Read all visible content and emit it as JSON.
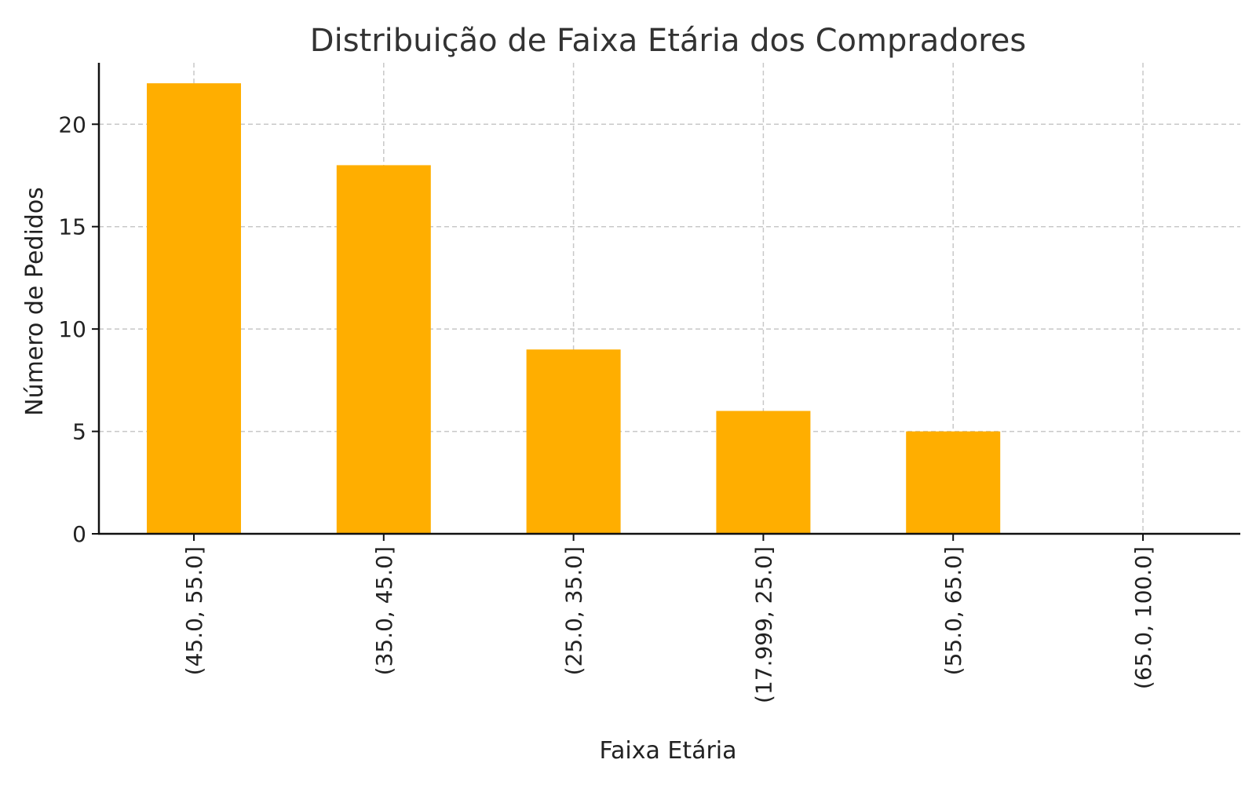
{
  "chart_data": {
    "type": "bar",
    "title": "Distribuição de Faixa Etária dos Compradores",
    "xlabel": "Faixa Etária",
    "ylabel": "Número de Pedidos",
    "categories": [
      "(45.0, 55.0]",
      "(35.0, 45.0]",
      "(25.0, 35.0]",
      "(17.999, 25.0]",
      "(55.0, 65.0]",
      "(65.0, 100.0]"
    ],
    "values": [
      22,
      18,
      9,
      6,
      5,
      0
    ],
    "ylim": [
      0,
      23
    ],
    "yticks": [
      0,
      5,
      10,
      15,
      20
    ],
    "grid": true,
    "bar_color": "#FFAE00"
  }
}
